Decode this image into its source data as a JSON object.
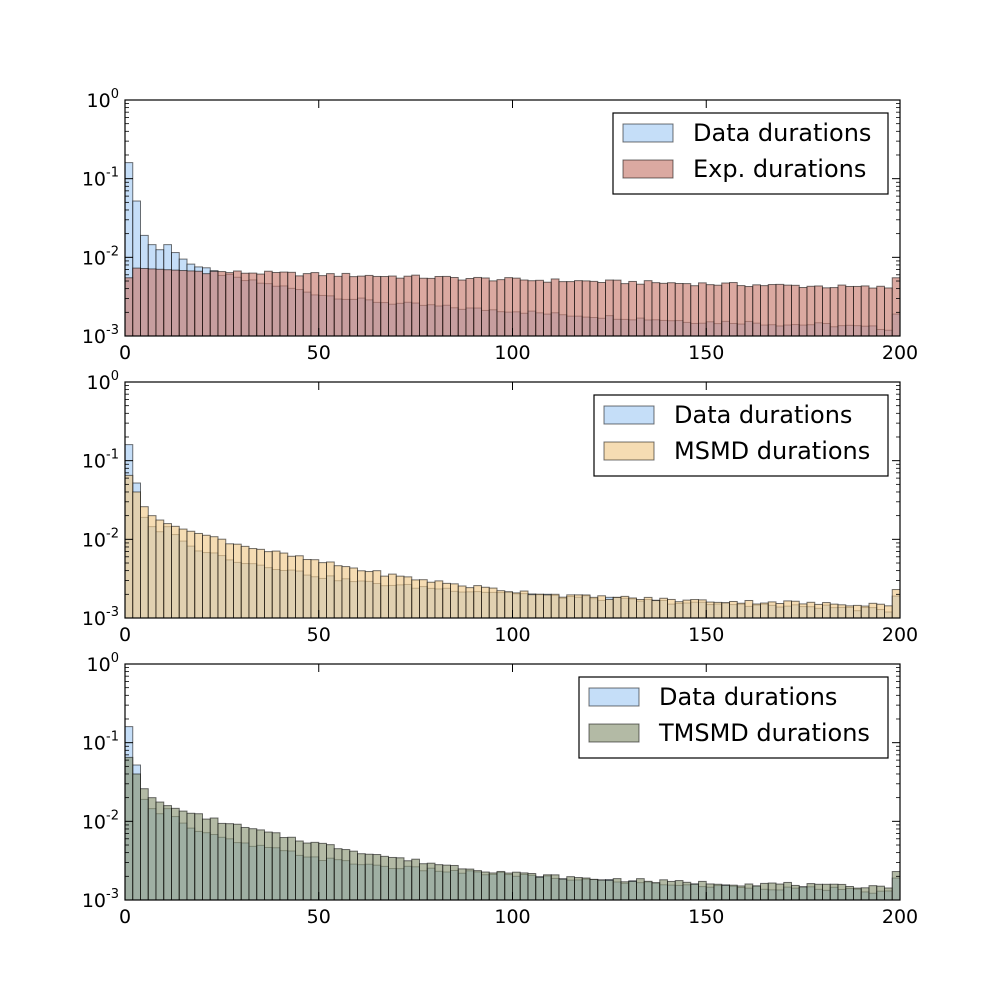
{
  "colors": {
    "data": "#a6cdf5",
    "exp": "#c77b6e",
    "msmd": "#f0c98a",
    "tmsmd": "#8a9575",
    "edge": "#000000"
  },
  "chart_data": [
    {
      "type": "bar",
      "yscale": "log",
      "xlim": [
        0,
        200
      ],
      "ylim": [
        0.001,
        1
      ],
      "bin_width": 2,
      "legend_position": "top-right",
      "x_ticks": [
        "0",
        "50",
        "100",
        "150",
        "200"
      ],
      "y_ticks": [
        {
          "base": "10",
          "exp": "0"
        },
        {
          "base": "10",
          "exp": "-1"
        },
        {
          "base": "10",
          "exp": "-2"
        },
        {
          "base": "10",
          "exp": "-3"
        }
      ],
      "series": [
        {
          "name": "Data durations",
          "color_key": "data",
          "alpha": 0.65,
          "model": {
            "type": "powerlaw",
            "points": [
              [
                1,
                0.16
              ],
              [
                3,
                0.052
              ],
              [
                5,
                0.019
              ],
              [
                7,
                0.0145
              ],
              [
                9,
                0.0125
              ],
              [
                11,
                0.0145
              ],
              [
                13,
                0.0115
              ],
              [
                15,
                0.0095
              ],
              [
                17,
                0.0082
              ],
              [
                20,
                0.0072
              ],
              [
                30,
                0.0052
              ],
              [
                40,
                0.0043
              ],
              [
                50,
                0.0034
              ],
              [
                60,
                0.0029
              ],
              [
                70,
                0.0026
              ],
              [
                80,
                0.0024
              ],
              [
                90,
                0.0022
              ],
              [
                100,
                0.0021
              ],
              [
                110,
                0.0019
              ],
              [
                120,
                0.0018
              ],
              [
                130,
                0.0017
              ],
              [
                140,
                0.0016
              ],
              [
                150,
                0.0015
              ],
              [
                160,
                0.0015
              ],
              [
                170,
                0.0014
              ],
              [
                180,
                0.0014
              ],
              [
                190,
                0.0013
              ],
              [
                197,
                0.00125
              ],
              [
                199,
                0.0019
              ]
            ]
          }
        },
        {
          "name": "Exp. durations",
          "color_key": "exp",
          "alpha": 0.65,
          "model": {
            "type": "exp",
            "points": [
              [
                1,
                0.0055
              ],
              [
                3,
                0.0073
              ],
              [
                20,
                0.0066
              ],
              [
                60,
                0.0059
              ],
              [
                100,
                0.0052
              ],
              [
                150,
                0.0046
              ],
              [
                197,
                0.0041
              ],
              [
                199,
                0.0055
              ]
            ]
          }
        }
      ]
    },
    {
      "type": "bar",
      "yscale": "log",
      "xlim": [
        0,
        200
      ],
      "ylim": [
        0.001,
        1
      ],
      "bin_width": 2,
      "legend_position": "top-right",
      "x_ticks": [
        "0",
        "50",
        "100",
        "150",
        "200"
      ],
      "y_ticks": [
        {
          "base": "10",
          "exp": "0"
        },
        {
          "base": "10",
          "exp": "-1"
        },
        {
          "base": "10",
          "exp": "-2"
        },
        {
          "base": "10",
          "exp": "-3"
        }
      ],
      "series": [
        {
          "name": "Data durations",
          "color_key": "data",
          "alpha": 0.65,
          "model": {
            "type": "powerlaw",
            "points": [
              [
                1,
                0.16
              ],
              [
                3,
                0.052
              ],
              [
                5,
                0.019
              ],
              [
                7,
                0.0145
              ],
              [
                9,
                0.0125
              ],
              [
                11,
                0.0145
              ],
              [
                13,
                0.0115
              ],
              [
                15,
                0.0095
              ],
              [
                17,
                0.0082
              ],
              [
                20,
                0.0072
              ],
              [
                30,
                0.0052
              ],
              [
                40,
                0.0043
              ],
              [
                50,
                0.0034
              ],
              [
                60,
                0.0029
              ],
              [
                70,
                0.0026
              ],
              [
                80,
                0.0024
              ],
              [
                90,
                0.0022
              ],
              [
                100,
                0.0021
              ],
              [
                110,
                0.0019
              ],
              [
                120,
                0.0018
              ],
              [
                130,
                0.0017
              ],
              [
                140,
                0.0016
              ],
              [
                150,
                0.0015
              ],
              [
                160,
                0.0015
              ],
              [
                170,
                0.0014
              ],
              [
                180,
                0.0014
              ],
              [
                190,
                0.0013
              ],
              [
                197,
                0.00125
              ],
              [
                199,
                0.0019
              ]
            ]
          }
        },
        {
          "name": "MSMD durations",
          "color_key": "msmd",
          "alpha": 0.65,
          "model": {
            "type": "powerlaw",
            "points": [
              [
                1,
                0.065
              ],
              [
                3,
                0.04
              ],
              [
                5,
                0.026
              ],
              [
                7,
                0.02
              ],
              [
                10,
                0.0165
              ],
              [
                15,
                0.0135
              ],
              [
                20,
                0.0115
              ],
              [
                30,
                0.0085
              ],
              [
                40,
                0.0066
              ],
              [
                50,
                0.0052
              ],
              [
                60,
                0.0042
              ],
              [
                70,
                0.0034
              ],
              [
                80,
                0.0029
              ],
              [
                90,
                0.0025
              ],
              [
                100,
                0.0022
              ],
              [
                110,
                0.002
              ],
              [
                120,
                0.00185
              ],
              [
                130,
                0.0018
              ],
              [
                140,
                0.0017
              ],
              [
                150,
                0.00165
              ],
              [
                160,
                0.0016
              ],
              [
                170,
                0.0016
              ],
              [
                180,
                0.0015
              ],
              [
                190,
                0.0015
              ],
              [
                197,
                0.0015
              ],
              [
                199,
                0.0023
              ]
            ]
          }
        }
      ]
    },
    {
      "type": "bar",
      "yscale": "log",
      "xlim": [
        0,
        200
      ],
      "ylim": [
        0.001,
        1
      ],
      "bin_width": 2,
      "legend_position": "top-right",
      "x_ticks": [
        "0",
        "50",
        "100",
        "150",
        "200"
      ],
      "y_ticks": [
        {
          "base": "10",
          "exp": "0"
        },
        {
          "base": "10",
          "exp": "-1"
        },
        {
          "base": "10",
          "exp": "-2"
        },
        {
          "base": "10",
          "exp": "-3"
        }
      ],
      "series": [
        {
          "name": "Data durations",
          "color_key": "data",
          "alpha": 0.65,
          "model": {
            "type": "powerlaw",
            "points": [
              [
                1,
                0.16
              ],
              [
                3,
                0.052
              ],
              [
                5,
                0.019
              ],
              [
                7,
                0.0145
              ],
              [
                9,
                0.0125
              ],
              [
                11,
                0.0145
              ],
              [
                13,
                0.0115
              ],
              [
                15,
                0.0095
              ],
              [
                17,
                0.0082
              ],
              [
                20,
                0.0072
              ],
              [
                30,
                0.0052
              ],
              [
                40,
                0.0043
              ],
              [
                50,
                0.0034
              ],
              [
                60,
                0.0029
              ],
              [
                70,
                0.0026
              ],
              [
                80,
                0.0024
              ],
              [
                90,
                0.0022
              ],
              [
                100,
                0.0021
              ],
              [
                110,
                0.0019
              ],
              [
                120,
                0.0018
              ],
              [
                130,
                0.0017
              ],
              [
                140,
                0.0016
              ],
              [
                150,
                0.0015
              ],
              [
                160,
                0.0015
              ],
              [
                170,
                0.0014
              ],
              [
                180,
                0.0014
              ],
              [
                190,
                0.0013
              ],
              [
                197,
                0.00125
              ],
              [
                199,
                0.0019
              ]
            ]
          }
        },
        {
          "name": "TMSMD durations",
          "color_key": "tmsmd",
          "alpha": 0.65,
          "model": {
            "type": "powerlaw",
            "points": [
              [
                1,
                0.065
              ],
              [
                3,
                0.04
              ],
              [
                5,
                0.026
              ],
              [
                7,
                0.02
              ],
              [
                10,
                0.0165
              ],
              [
                15,
                0.0135
              ],
              [
                20,
                0.0115
              ],
              [
                30,
                0.0085
              ],
              [
                40,
                0.0066
              ],
              [
                50,
                0.0052
              ],
              [
                60,
                0.0042
              ],
              [
                70,
                0.0034
              ],
              [
                80,
                0.0029
              ],
              [
                90,
                0.0025
              ],
              [
                100,
                0.0022
              ],
              [
                110,
                0.002
              ],
              [
                120,
                0.00185
              ],
              [
                130,
                0.0018
              ],
              [
                140,
                0.0017
              ],
              [
                150,
                0.00165
              ],
              [
                160,
                0.0016
              ],
              [
                170,
                0.0016
              ],
              [
                180,
                0.0015
              ],
              [
                190,
                0.0015
              ],
              [
                197,
                0.0015
              ],
              [
                199,
                0.0023
              ]
            ]
          }
        }
      ]
    }
  ]
}
